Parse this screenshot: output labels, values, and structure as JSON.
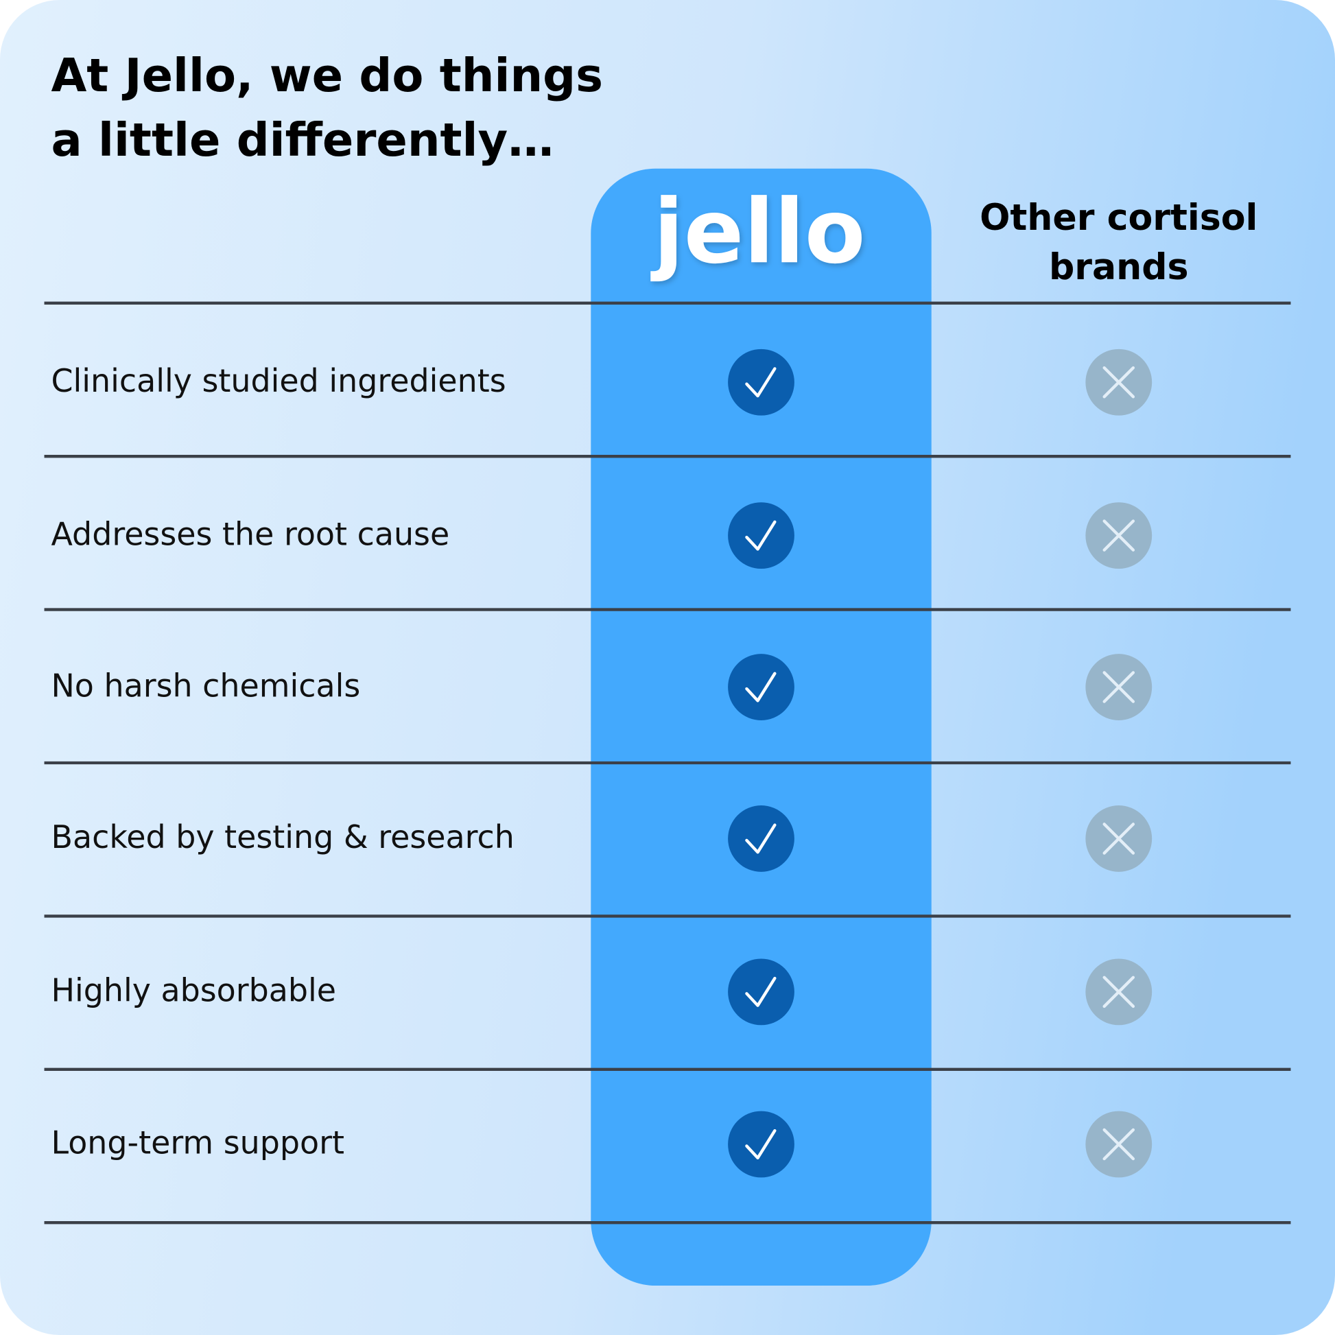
{
  "header": {
    "title_lines": [
      "At Jello, we do things",
      "a little differently…"
    ]
  },
  "columns": {
    "brand": "jello",
    "other_lines": [
      "Other cortisol",
      "brands"
    ]
  },
  "rows": [
    "Clinically studied ingredients",
    "Addresses the root cause",
    "No harsh chemicals",
    "Backed by testing & research",
    "Highly absorbable",
    "Long-term support"
  ]
}
